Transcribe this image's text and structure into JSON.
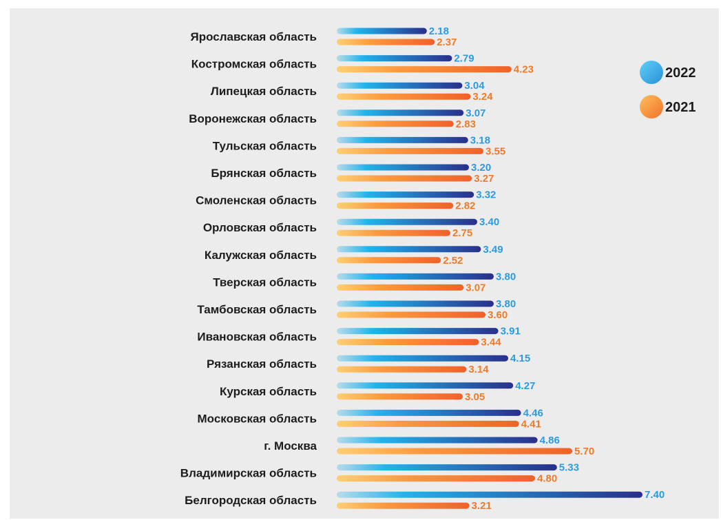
{
  "chart_data": {
    "type": "bar",
    "orientation": "horizontal",
    "legend_position": "top-right",
    "categories": [
      "Ярославская область",
      "Костромская область",
      "Липецкая область",
      "Воронежская область",
      "Тульская область",
      "Брянская область",
      "Смоленская область",
      "Орловская область",
      "Калужская область",
      "Тверская область",
      "Тамбовская область",
      "Ивановская область",
      "Рязанская область",
      "Курская область",
      "Московская область",
      "г. Москва",
      "Владимирская область",
      "Белгородская область"
    ],
    "series": [
      {
        "name": "2022",
        "values": [
          2.18,
          2.79,
          3.04,
          3.07,
          3.18,
          3.2,
          3.32,
          3.4,
          3.49,
          3.8,
          3.8,
          3.91,
          4.15,
          4.27,
          4.46,
          4.86,
          5.33,
          7.4
        ],
        "labels": [
          "2.18",
          "2.79",
          "3.04",
          "3.07",
          "3.18",
          "3.20",
          "3.32",
          "3.40",
          "3.49",
          "3.80",
          "3.80",
          "3.91",
          "4.15",
          "4.27",
          "4.46",
          "4.86",
          "5.33",
          "7.40"
        ]
      },
      {
        "name": "2021",
        "values": [
          2.37,
          4.23,
          3.24,
          2.83,
          3.55,
          3.27,
          2.82,
          2.75,
          2.52,
          3.07,
          3.6,
          3.44,
          3.14,
          3.05,
          4.41,
          5.7,
          4.8,
          3.21
        ],
        "labels": [
          "2.37",
          "4.23",
          "3.24",
          "2.83",
          "3.55",
          "3.27",
          "2.82",
          "2.75",
          "2.52",
          "3.07",
          "3.60",
          "3.44",
          "3.14",
          "3.05",
          "4.41",
          "5.70",
          "4.80",
          "3.21"
        ]
      }
    ],
    "colors": {
      "2022": {
        "start": "#b9dbe9",
        "mid": "#21b4ec",
        "end": "#2a2f8a"
      },
      "2021": {
        "start": "#ffcf74",
        "mid": "#fb9a3f",
        "end": "#f0612a"
      }
    },
    "xlim": [
      0,
      8
    ],
    "grid": false
  }
}
